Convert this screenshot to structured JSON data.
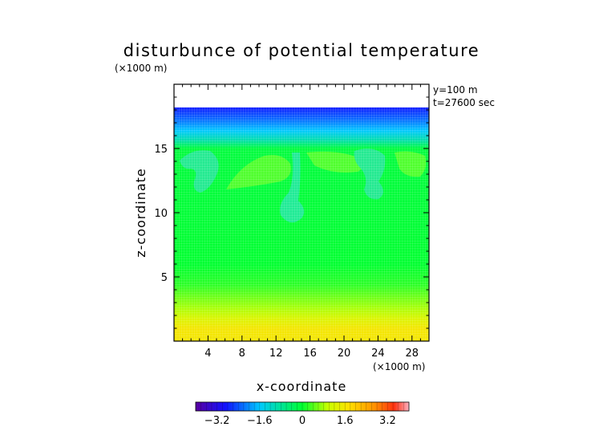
{
  "chart_data": {
    "type": "heatmap",
    "title": "disturbunce of potential temperature",
    "xlabel": "x-coordinate",
    "ylabel": "z-coordinate",
    "x_unit": "(×1000 m)",
    "y_unit": "(×1000 m)",
    "annotations": [
      "y=100 m",
      "t=27600 sec"
    ],
    "xlim": [
      0,
      30
    ],
    "ylim": [
      0,
      20
    ],
    "x_ticks": [
      4,
      8,
      12,
      16,
      20,
      24,
      28
    ],
    "y_ticks": [
      5,
      10,
      15
    ],
    "colorbar": {
      "range": [
        -4.0,
        4.0
      ],
      "ticks": [
        -3.2,
        -1.6,
        0,
        1.6,
        3.2
      ],
      "tick_labels": [
        "−3.2",
        "−1.6",
        "0",
        "1.6",
        "3.2"
      ]
    },
    "field_profile": [
      {
        "z": 0.0,
        "value": 1.6
      },
      {
        "z": 1.0,
        "value": 1.6
      },
      {
        "z": 1.8,
        "value": 1.2
      },
      {
        "z": 2.6,
        "value": 0.8
      },
      {
        "z": 3.5,
        "value": 0.5
      },
      {
        "z": 4.4,
        "value": 0.2
      },
      {
        "z": 6.0,
        "value": 0.0
      },
      {
        "z": 15.0,
        "value": -0.1
      },
      {
        "z": 15.6,
        "value": -0.9
      },
      {
        "z": 16.4,
        "value": -1.6
      },
      {
        "z": 17.2,
        "value": -2.2
      },
      {
        "z": 18.2,
        "value": -2.8
      }
    ],
    "top_of_data_z": 18.2
  }
}
